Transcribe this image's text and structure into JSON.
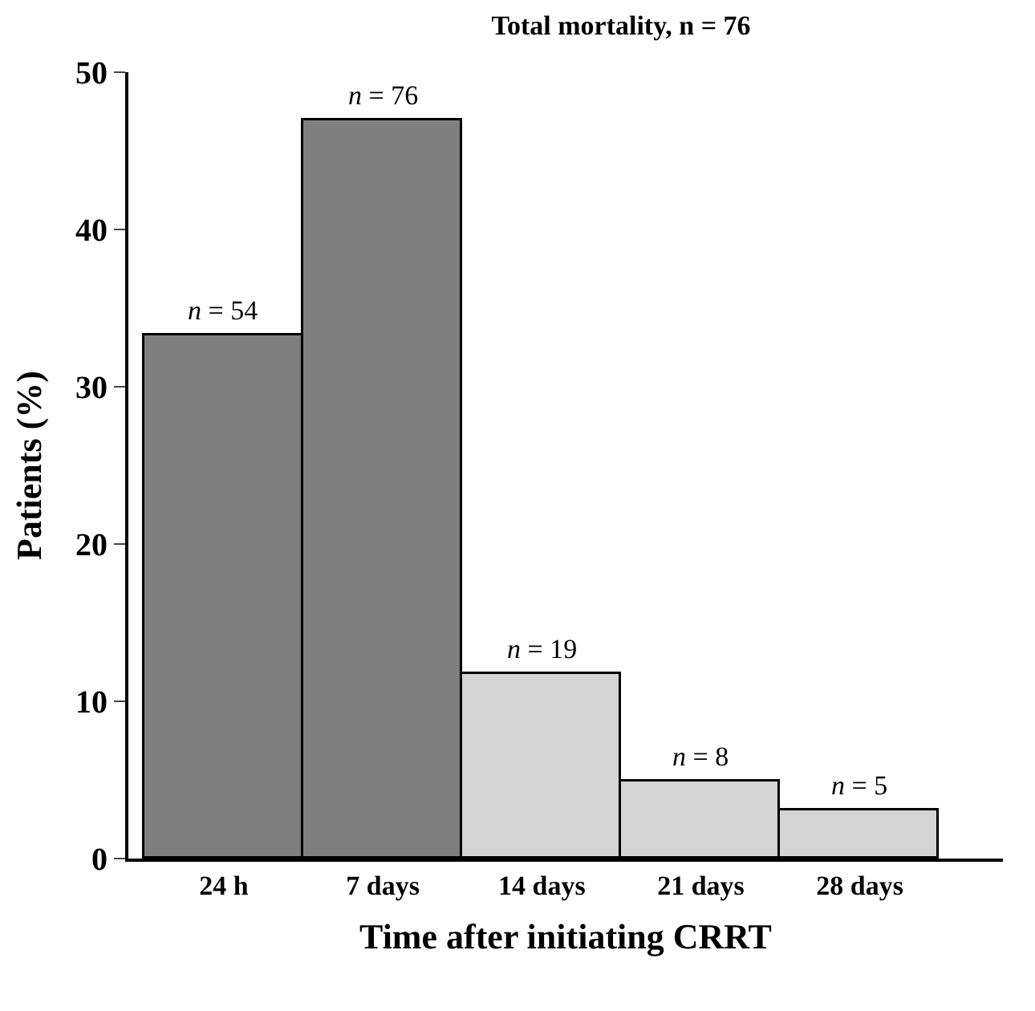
{
  "chart_data": {
    "type": "bar",
    "title": "Total mortality, n = 76",
    "xlabel": "Time after initiating CRRT",
    "ylabel": "Patients (%)",
    "categories": [
      "24 h",
      "7 days",
      "14 days",
      "21 days",
      "28 days"
    ],
    "values": [
      33.3,
      46.9,
      11.7,
      4.9,
      3.1
    ],
    "colors": [
      "#7f7f7f",
      "#7f7f7f",
      "#d4d4d4",
      "#d4d4d4",
      "#d4d4d4"
    ],
    "annotations": [
      {
        "text": "n = 54",
        "x": "24 h",
        "y": 33.3
      },
      {
        "text": "n = 76",
        "x": "7 days",
        "y": 46.9
      },
      {
        "text": "n = 19",
        "x": "14 days",
        "y": 11.7
      },
      {
        "text": "n = 8",
        "x": "21 days",
        "y": 4.9
      },
      {
        "text": "n = 5",
        "x": "28 days",
        "y": 3.1
      }
    ],
    "ylim": [
      0,
      50
    ],
    "yticks": [
      0,
      10,
      20,
      30,
      40,
      50
    ]
  }
}
